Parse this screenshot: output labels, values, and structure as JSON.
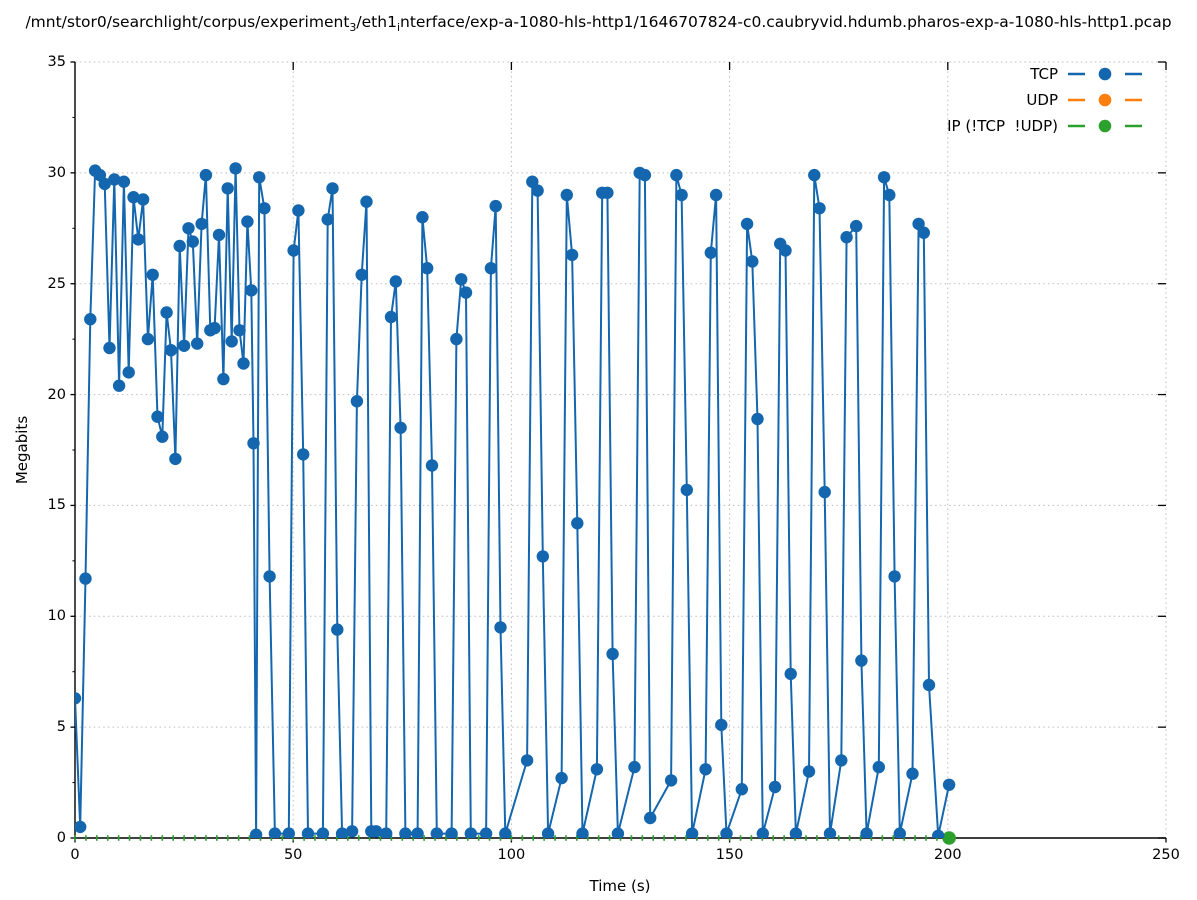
{
  "title": {
    "parts": {
      "p0": "/mnt/stor0/searchlight/corpus/experiment",
      "sub0": "3",
      "p1": "/eth1",
      "sub1": "i",
      "p2": "nterface/exp-a-1080-hls-http1/1646707824-c0.caubryvid.hdumb.pharos-exp-a-1080-hls-http1.pcap"
    }
  },
  "axes": {
    "x": {
      "label": "Time (s)",
      "min": 0,
      "max": 250,
      "ticks": [
        0,
        50,
        100,
        150,
        200,
        250
      ]
    },
    "y": {
      "label": "Megabits",
      "min": 0,
      "max": 35,
      "ticks": [
        0,
        5,
        10,
        15,
        20,
        25,
        30,
        35
      ],
      "minor_step": 2.5
    }
  },
  "legend": {
    "position": "top-right",
    "entries": [
      {
        "label": "TCP",
        "color": "#1467ae"
      },
      {
        "label": "UDP",
        "color": "#ff7f0e"
      },
      {
        "label": "IP (!TCP  !UDP)",
        "color": "#2ca02c"
      }
    ]
  },
  "colors": {
    "tcp": "#1467ae",
    "udp": "#ff7f0e",
    "ip_other": "#2ca02c",
    "grid": "#bdbdbd",
    "axis": "#000000"
  },
  "chart_data": {
    "type": "line",
    "title": "/mnt/stor0/searchlight/corpus/experiment3/eth1interface/exp-a-1080-hls-http1/1646707824-c0.caubryvid.hdumb.pharos-exp-a-1080-hls-http1.pcap",
    "xlabel": "Time (s)",
    "ylabel": "Megabits",
    "xlim": [
      0,
      250
    ],
    "ylim": [
      0,
      35
    ],
    "grid": "dotted at major ticks",
    "legend_position": "top-right inside plot",
    "series": [
      {
        "name": "TCP",
        "color": "#1467ae",
        "style": "line with filled circle markers",
        "points": [
          [
            0,
            6.3
          ],
          [
            1.2,
            0.5
          ],
          [
            2.4,
            11.7
          ],
          [
            3.5,
            23.4
          ],
          [
            4.6,
            30.1
          ],
          [
            5.7,
            29.9
          ],
          [
            6.8,
            29.5
          ],
          [
            7.9,
            22.1
          ],
          [
            9,
            29.7
          ],
          [
            10.1,
            20.4
          ],
          [
            11.2,
            29.6
          ],
          [
            12.3,
            21
          ],
          [
            13.4,
            28.9
          ],
          [
            14.5,
            27
          ],
          [
            15.6,
            28.8
          ],
          [
            16.7,
            22.5
          ],
          [
            17.8,
            25.4
          ],
          [
            18.9,
            19
          ],
          [
            20,
            18.1
          ],
          [
            21,
            23.7
          ],
          [
            22,
            22
          ],
          [
            23,
            17.1
          ],
          [
            24,
            26.7
          ],
          [
            25,
            22.2
          ],
          [
            26,
            27.5
          ],
          [
            27,
            26.9
          ],
          [
            28,
            22.3
          ],
          [
            29,
            27.7
          ],
          [
            30,
            29.9
          ],
          [
            31,
            22.9
          ],
          [
            32,
            23
          ],
          [
            33,
            27.2
          ],
          [
            34,
            20.7
          ],
          [
            35,
            29.3
          ],
          [
            35.9,
            22.4
          ],
          [
            36.8,
            30.2
          ],
          [
            37.7,
            22.9
          ],
          [
            38.6,
            21.4
          ],
          [
            39.5,
            27.8
          ],
          [
            40.4,
            24.7
          ],
          [
            40.9,
            17.8
          ],
          [
            41.5,
            0.15
          ],
          [
            42.2,
            29.8
          ],
          [
            43.4,
            28.4
          ],
          [
            44.6,
            11.8
          ],
          [
            45.8,
            0.2
          ],
          [
            49,
            0.2
          ],
          [
            50.1,
            26.5
          ],
          [
            51.2,
            28.3
          ],
          [
            52.3,
            17.3
          ],
          [
            53.4,
            0.2
          ],
          [
            56.8,
            0.2
          ],
          [
            57.9,
            27.9
          ],
          [
            59,
            29.3
          ],
          [
            60.1,
            9.4
          ],
          [
            61.2,
            0.2
          ],
          [
            63.5,
            0.3
          ],
          [
            64.6,
            19.7
          ],
          [
            65.7,
            25.4
          ],
          [
            66.8,
            28.7
          ],
          [
            67.9,
            0.3
          ],
          [
            69,
            0.3
          ],
          [
            71.3,
            0.2
          ],
          [
            72.4,
            23.5
          ],
          [
            73.5,
            25.1
          ],
          [
            74.6,
            18.5
          ],
          [
            75.7,
            0.2
          ],
          [
            78.5,
            0.2
          ],
          [
            79.6,
            28
          ],
          [
            80.7,
            25.7
          ],
          [
            81.8,
            16.8
          ],
          [
            82.9,
            0.2
          ],
          [
            86.3,
            0.2
          ],
          [
            87.4,
            22.5
          ],
          [
            88.5,
            25.2
          ],
          [
            89.6,
            24.6
          ],
          [
            90.7,
            0.2
          ],
          [
            94.2,
            0.2
          ],
          [
            95.3,
            25.7
          ],
          [
            96.4,
            28.5
          ],
          [
            97.5,
            9.5
          ],
          [
            98.6,
            0.2
          ],
          [
            103.6,
            3.5
          ],
          [
            104.8,
            29.6
          ],
          [
            106,
            29.2
          ],
          [
            107.2,
            12.7
          ],
          [
            108.4,
            0.2
          ],
          [
            111.5,
            2.7
          ],
          [
            112.7,
            29
          ],
          [
            113.9,
            26.3
          ],
          [
            115.1,
            14.2
          ],
          [
            116.3,
            0.2
          ],
          [
            119.6,
            3.1
          ],
          [
            120.8,
            29.1
          ],
          [
            122,
            29.1
          ],
          [
            123.2,
            8.3
          ],
          [
            124.4,
            0.2
          ],
          [
            128.2,
            3.2
          ],
          [
            129.4,
            30
          ],
          [
            130.6,
            29.9
          ],
          [
            131.8,
            0.9
          ],
          [
            136.6,
            2.6
          ],
          [
            137.8,
            29.9
          ],
          [
            139,
            29
          ],
          [
            140.2,
            15.7
          ],
          [
            141.4,
            0.2
          ],
          [
            144.5,
            3.1
          ],
          [
            145.7,
            26.4
          ],
          [
            146.9,
            29
          ],
          [
            148.1,
            5.1
          ],
          [
            149.3,
            0.2
          ],
          [
            152.8,
            2.2
          ],
          [
            154,
            27.7
          ],
          [
            155.2,
            26
          ],
          [
            156.4,
            18.9
          ],
          [
            157.6,
            0.2
          ],
          [
            160.4,
            2.3
          ],
          [
            161.6,
            26.8
          ],
          [
            162.8,
            26.5
          ],
          [
            164,
            7.4
          ],
          [
            165.2,
            0.2
          ],
          [
            168.2,
            3
          ],
          [
            169.4,
            29.9
          ],
          [
            170.6,
            28.4
          ],
          [
            171.8,
            15.6
          ],
          [
            173,
            0.2
          ],
          [
            175.6,
            3.5
          ],
          [
            176.8,
            27.1
          ],
          [
            179,
            27.6
          ],
          [
            180.2,
            8
          ],
          [
            181.4,
            0.2
          ],
          [
            184.2,
            3.2
          ],
          [
            185.4,
            29.8
          ],
          [
            186.6,
            29
          ],
          [
            187.8,
            11.8
          ],
          [
            189,
            0.2
          ],
          [
            191.9,
            2.9
          ],
          [
            193.3,
            27.7
          ],
          [
            194.5,
            27.3
          ],
          [
            195.7,
            6.9
          ],
          [
            197.8,
            0.1
          ],
          [
            200.3,
            2.4
          ]
        ]
      },
      {
        "name": "UDP",
        "color": "#ff7f0e",
        "style": "line with filled circle markers",
        "points": [],
        "note_visible": "no orange data visible on plot (only legend entry)"
      },
      {
        "name": "IP (!TCP  !UDP)",
        "color": "#2ca02c",
        "style": "small tick markers along y=0 with end point",
        "zero_run": {
          "value": 0,
          "t_start": 0,
          "t_end": 200,
          "marker_interval": 2.5
        },
        "points": [
          [
            200.3,
            0
          ]
        ]
      }
    ]
  }
}
